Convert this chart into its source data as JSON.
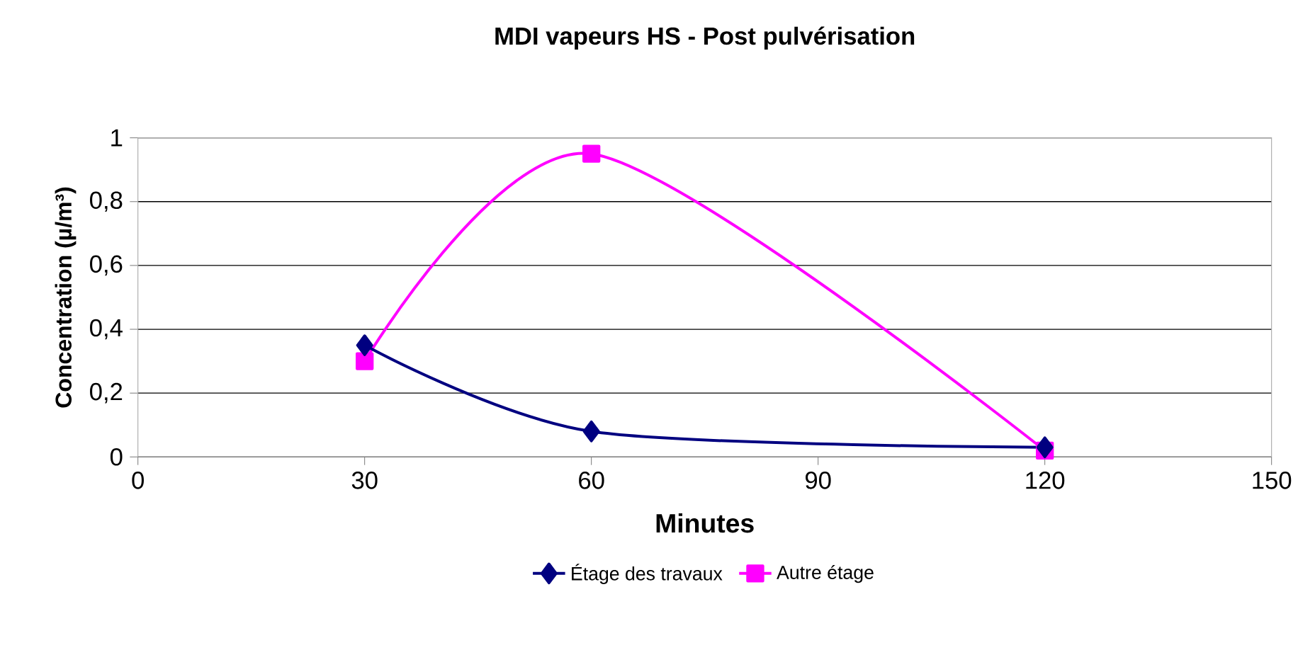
{
  "chart_data": {
    "type": "line",
    "title": "MDI vapeurs HS - Post pulvérisation",
    "xlabel": "Minutes",
    "ylabel": "Concentration (µ/m³)",
    "x": [
      30,
      60,
      120
    ],
    "series": [
      {
        "name": "Étage des travaux",
        "color": "#000080",
        "values": [
          0.35,
          0.08,
          0.03
        ],
        "marker": "diamond"
      },
      {
        "name": "Autre étage",
        "color": "#ff00ff",
        "values": [
          0.3,
          0.95,
          0.02
        ],
        "marker": "square"
      }
    ],
    "xlim": [
      0,
      150
    ],
    "xticks": [
      0,
      30,
      60,
      90,
      120,
      150
    ],
    "ylim": [
      0,
      1
    ],
    "yticks": [
      0,
      {
        "value": 0.2,
        "label": "0,2"
      },
      {
        "value": 0.4,
        "label": "0,4"
      },
      {
        "value": 0.6,
        "label": "0,6"
      },
      {
        "value": 0.8,
        "label": "0,8"
      },
      1
    ],
    "grid": "y",
    "legend": "bottom",
    "line_style": "solid"
  }
}
